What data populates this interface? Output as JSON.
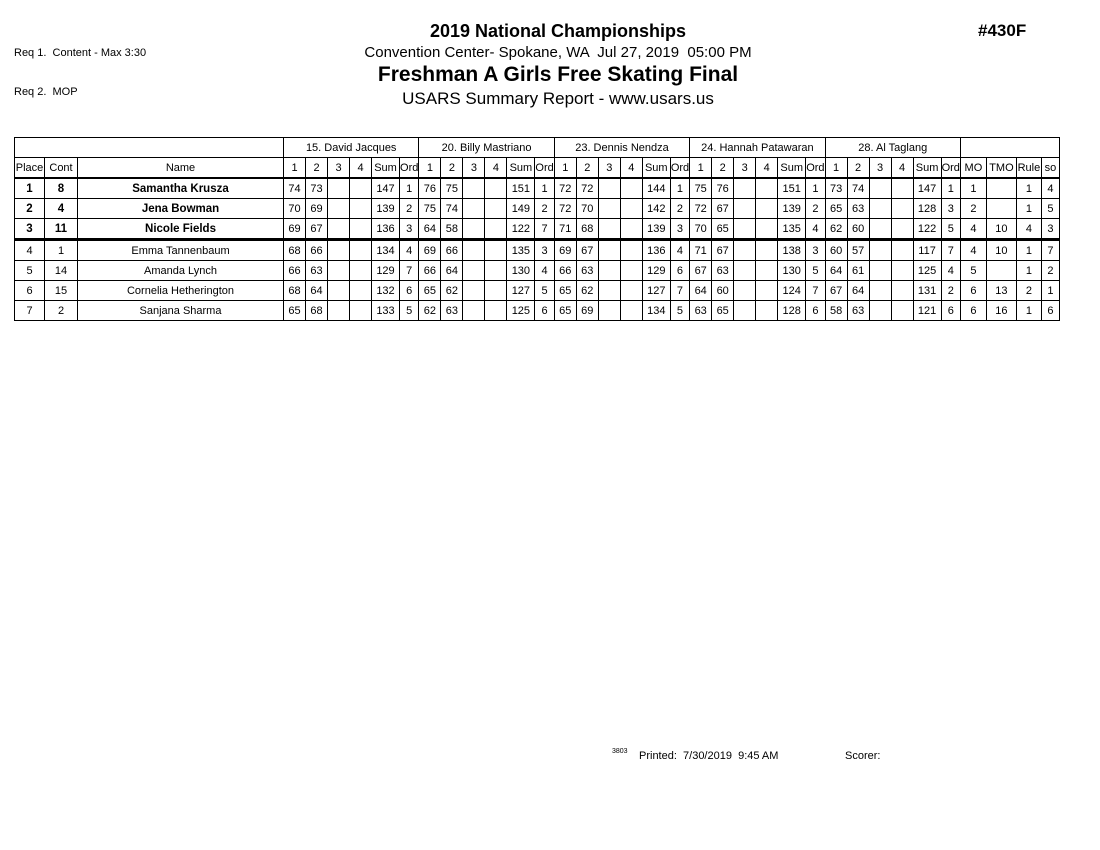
{
  "header": {
    "req_line_1": "Req 1.  Content - Max 3:30",
    "req_line_2": "Req 2.  MOP",
    "event_code": "#430F",
    "competition_title": "2019 National Championships",
    "venue_line": "Convention Center- Spokane, WA  Jul 27, 2019  05:00 PM",
    "event_title": "Freshman A Girls Free Skating Final",
    "report_title": "USARS Summary Report - www.usars.us"
  },
  "table": {
    "left_headers": [
      "Place",
      "Cont",
      "Name"
    ],
    "judge_subcols": [
      "1",
      "2",
      "3",
      "4",
      "Sum",
      "Ord"
    ],
    "right_headers": [
      "MO",
      "TMO",
      "Rule",
      "so"
    ],
    "judges": [
      "15.  David Jacques",
      "20.  Billy Mastriano",
      "23.  Dennis Nendza",
      "24.  Hannah Patawaran",
      "28.  Al Taglang"
    ],
    "rows": [
      {
        "place": "1",
        "cont": "8",
        "name": "Samantha Krusza",
        "bold": true,
        "scores": [
          [
            "74",
            "73",
            "",
            "",
            "147",
            "1"
          ],
          [
            "76",
            "75",
            "",
            "",
            "151",
            "1"
          ],
          [
            "72",
            "72",
            "",
            "",
            "144",
            "1"
          ],
          [
            "75",
            "76",
            "",
            "",
            "151",
            "1"
          ],
          [
            "73",
            "74",
            "",
            "",
            "147",
            "1"
          ]
        ],
        "mo": "1",
        "tmo": "",
        "rule": "1",
        "so": "4"
      },
      {
        "place": "2",
        "cont": "4",
        "name": "Jena Bowman",
        "bold": true,
        "scores": [
          [
            "70",
            "69",
            "",
            "",
            "139",
            "2"
          ],
          [
            "75",
            "74",
            "",
            "",
            "149",
            "2"
          ],
          [
            "72",
            "70",
            "",
            "",
            "142",
            "2"
          ],
          [
            "72",
            "67",
            "",
            "",
            "139",
            "2"
          ],
          [
            "65",
            "63",
            "",
            "",
            "128",
            "3"
          ]
        ],
        "mo": "2",
        "tmo": "",
        "rule": "1",
        "so": "5"
      },
      {
        "place": "3",
        "cont": "11",
        "name": "Nicole Fields",
        "bold": true,
        "scores": [
          [
            "69",
            "67",
            "",
            "",
            "136",
            "3"
          ],
          [
            "64",
            "58",
            "",
            "",
            "122",
            "7"
          ],
          [
            "71",
            "68",
            "",
            "",
            "139",
            "3"
          ],
          [
            "70",
            "65",
            "",
            "",
            "135",
            "4"
          ],
          [
            "62",
            "60",
            "",
            "",
            "122",
            "5"
          ]
        ],
        "mo": "4",
        "tmo": "10",
        "rule": "4",
        "so": "3"
      },
      {
        "place": "4",
        "cont": "1",
        "name": "Emma Tannenbaum",
        "bold": false,
        "scores": [
          [
            "68",
            "66",
            "",
            "",
            "134",
            "4"
          ],
          [
            "69",
            "66",
            "",
            "",
            "135",
            "3"
          ],
          [
            "69",
            "67",
            "",
            "",
            "136",
            "4"
          ],
          [
            "71",
            "67",
            "",
            "",
            "138",
            "3"
          ],
          [
            "60",
            "57",
            "",
            "",
            "117",
            "7"
          ]
        ],
        "mo": "4",
        "tmo": "10",
        "rule": "1",
        "so": "7"
      },
      {
        "place": "5",
        "cont": "14",
        "name": "Amanda Lynch",
        "bold": false,
        "scores": [
          [
            "66",
            "63",
            "",
            "",
            "129",
            "7"
          ],
          [
            "66",
            "64",
            "",
            "",
            "130",
            "4"
          ],
          [
            "66",
            "63",
            "",
            "",
            "129",
            "6"
          ],
          [
            "67",
            "63",
            "",
            "",
            "130",
            "5"
          ],
          [
            "64",
            "61",
            "",
            "",
            "125",
            "4"
          ]
        ],
        "mo": "5",
        "tmo": "",
        "rule": "1",
        "so": "2"
      },
      {
        "place": "6",
        "cont": "15",
        "name": "Cornelia Hetherington",
        "bold": false,
        "scores": [
          [
            "68",
            "64",
            "",
            "",
            "132",
            "6"
          ],
          [
            "65",
            "62",
            "",
            "",
            "127",
            "5"
          ],
          [
            "65",
            "62",
            "",
            "",
            "127",
            "7"
          ],
          [
            "64",
            "60",
            "",
            "",
            "124",
            "7"
          ],
          [
            "67",
            "64",
            "",
            "",
            "131",
            "2"
          ]
        ],
        "mo": "6",
        "tmo": "13",
        "rule": "2",
        "so": "1"
      },
      {
        "place": "7",
        "cont": "2",
        "name": "Sanjana Sharma",
        "bold": false,
        "scores": [
          [
            "65",
            "68",
            "",
            "",
            "133",
            "5"
          ],
          [
            "62",
            "63",
            "",
            "",
            "125",
            "6"
          ],
          [
            "65",
            "69",
            "",
            "",
            "134",
            "5"
          ],
          [
            "63",
            "65",
            "",
            "",
            "128",
            "6"
          ],
          [
            "58",
            "63",
            "",
            "",
            "121",
            "6"
          ]
        ],
        "mo": "6",
        "tmo": "16",
        "rule": "1",
        "so": "6"
      }
    ]
  },
  "footer": {
    "version": "3803",
    "printed_line": "Printed:  7/30/2019  9:45 AM",
    "scorer_label": "Scorer:"
  }
}
